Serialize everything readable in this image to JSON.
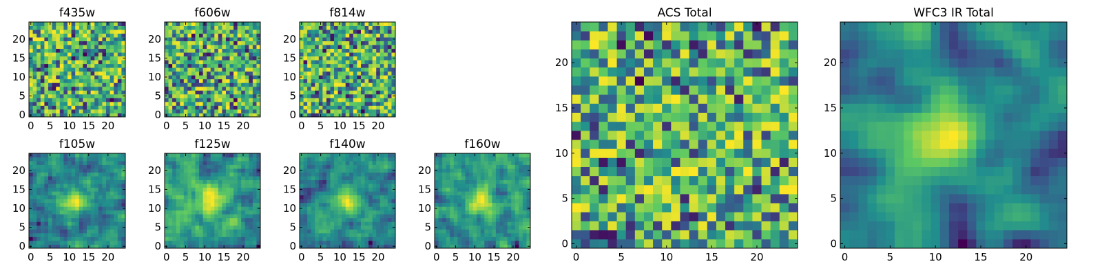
{
  "figure": {
    "colormap": "viridis",
    "colormap_stops": [
      "#440154",
      "#3b528b",
      "#21908d",
      "#5dc963",
      "#fde725"
    ]
  },
  "chart_data": [
    {
      "type": "heatmap",
      "title": "f435w",
      "size": [
        25,
        25
      ],
      "xticks": [
        0,
        5,
        10,
        15,
        20
      ],
      "yticks": [
        0,
        5,
        10,
        15,
        20
      ],
      "xlim": [
        -0.5,
        24.5
      ],
      "ylim": [
        -0.5,
        24.5
      ],
      "seed": 11,
      "smooth": 0,
      "structure": "noise"
    },
    {
      "type": "heatmap",
      "title": "f606w",
      "size": [
        25,
        25
      ],
      "xticks": [
        0,
        5,
        10,
        15,
        20
      ],
      "yticks": [
        0,
        5,
        10,
        15,
        20
      ],
      "xlim": [
        -0.5,
        24.5
      ],
      "ylim": [
        -0.5,
        24.5
      ],
      "seed": 23,
      "smooth": 0,
      "structure": "noise"
    },
    {
      "type": "heatmap",
      "title": "f814w",
      "size": [
        25,
        25
      ],
      "xticks": [
        0,
        5,
        10,
        15,
        20
      ],
      "yticks": [
        0,
        5,
        10,
        15,
        20
      ],
      "xlim": [
        -0.5,
        24.5
      ],
      "ylim": [
        -0.5,
        24.5
      ],
      "seed": 37,
      "smooth": 0,
      "structure": "noise"
    },
    {
      "type": "heatmap",
      "title": "f105w",
      "size": [
        25,
        25
      ],
      "xticks": [
        0,
        5,
        10,
        15,
        20
      ],
      "yticks": [
        0,
        5,
        10,
        15,
        20
      ],
      "xlim": [
        -0.5,
        24.5
      ],
      "ylim": [
        -0.5,
        24.5
      ],
      "seed": 41,
      "smooth": 1,
      "structure": "source"
    },
    {
      "type": "heatmap",
      "title": "f125w",
      "size": [
        25,
        25
      ],
      "xticks": [
        0,
        5,
        10,
        15,
        20
      ],
      "yticks": [
        0,
        5,
        10,
        15,
        20
      ],
      "xlim": [
        -0.5,
        24.5
      ],
      "ylim": [
        -0.5,
        24.5
      ],
      "seed": 53,
      "smooth": 1,
      "structure": "source"
    },
    {
      "type": "heatmap",
      "title": "f140w",
      "size": [
        25,
        25
      ],
      "xticks": [
        0,
        5,
        10,
        15,
        20
      ],
      "yticks": [
        0,
        5,
        10,
        15,
        20
      ],
      "xlim": [
        -0.5,
        24.5
      ],
      "ylim": [
        -0.5,
        24.5
      ],
      "seed": 67,
      "smooth": 1,
      "structure": "source"
    },
    {
      "type": "heatmap",
      "title": "f160w",
      "size": [
        25,
        25
      ],
      "xticks": [
        0,
        5,
        10,
        15,
        20
      ],
      "yticks": [
        0,
        5,
        10,
        15,
        20
      ],
      "xlim": [
        -0.5,
        24.5
      ],
      "ylim": [
        -0.5,
        24.5
      ],
      "seed": 79,
      "smooth": 1,
      "structure": "source"
    },
    {
      "type": "heatmap",
      "title": "ACS Total",
      "size": [
        25,
        25
      ],
      "xticks": [
        0,
        5,
        10,
        15,
        20
      ],
      "yticks": [
        0,
        5,
        10,
        15,
        20
      ],
      "xlim": [
        -0.5,
        24.5
      ],
      "ylim": [
        -0.5,
        24.5
      ],
      "seed": 97,
      "smooth": 0,
      "structure": "noise"
    },
    {
      "type": "heatmap",
      "title": "WFC3 IR Total",
      "size": [
        25,
        25
      ],
      "xticks": [
        0,
        5,
        10,
        15,
        20
      ],
      "yticks": [
        0,
        5,
        10,
        15,
        20
      ],
      "xlim": [
        -0.5,
        24.5
      ],
      "ylim": [
        -0.5,
        24.5
      ],
      "seed": 101,
      "smooth": 2,
      "structure": "source"
    }
  ]
}
